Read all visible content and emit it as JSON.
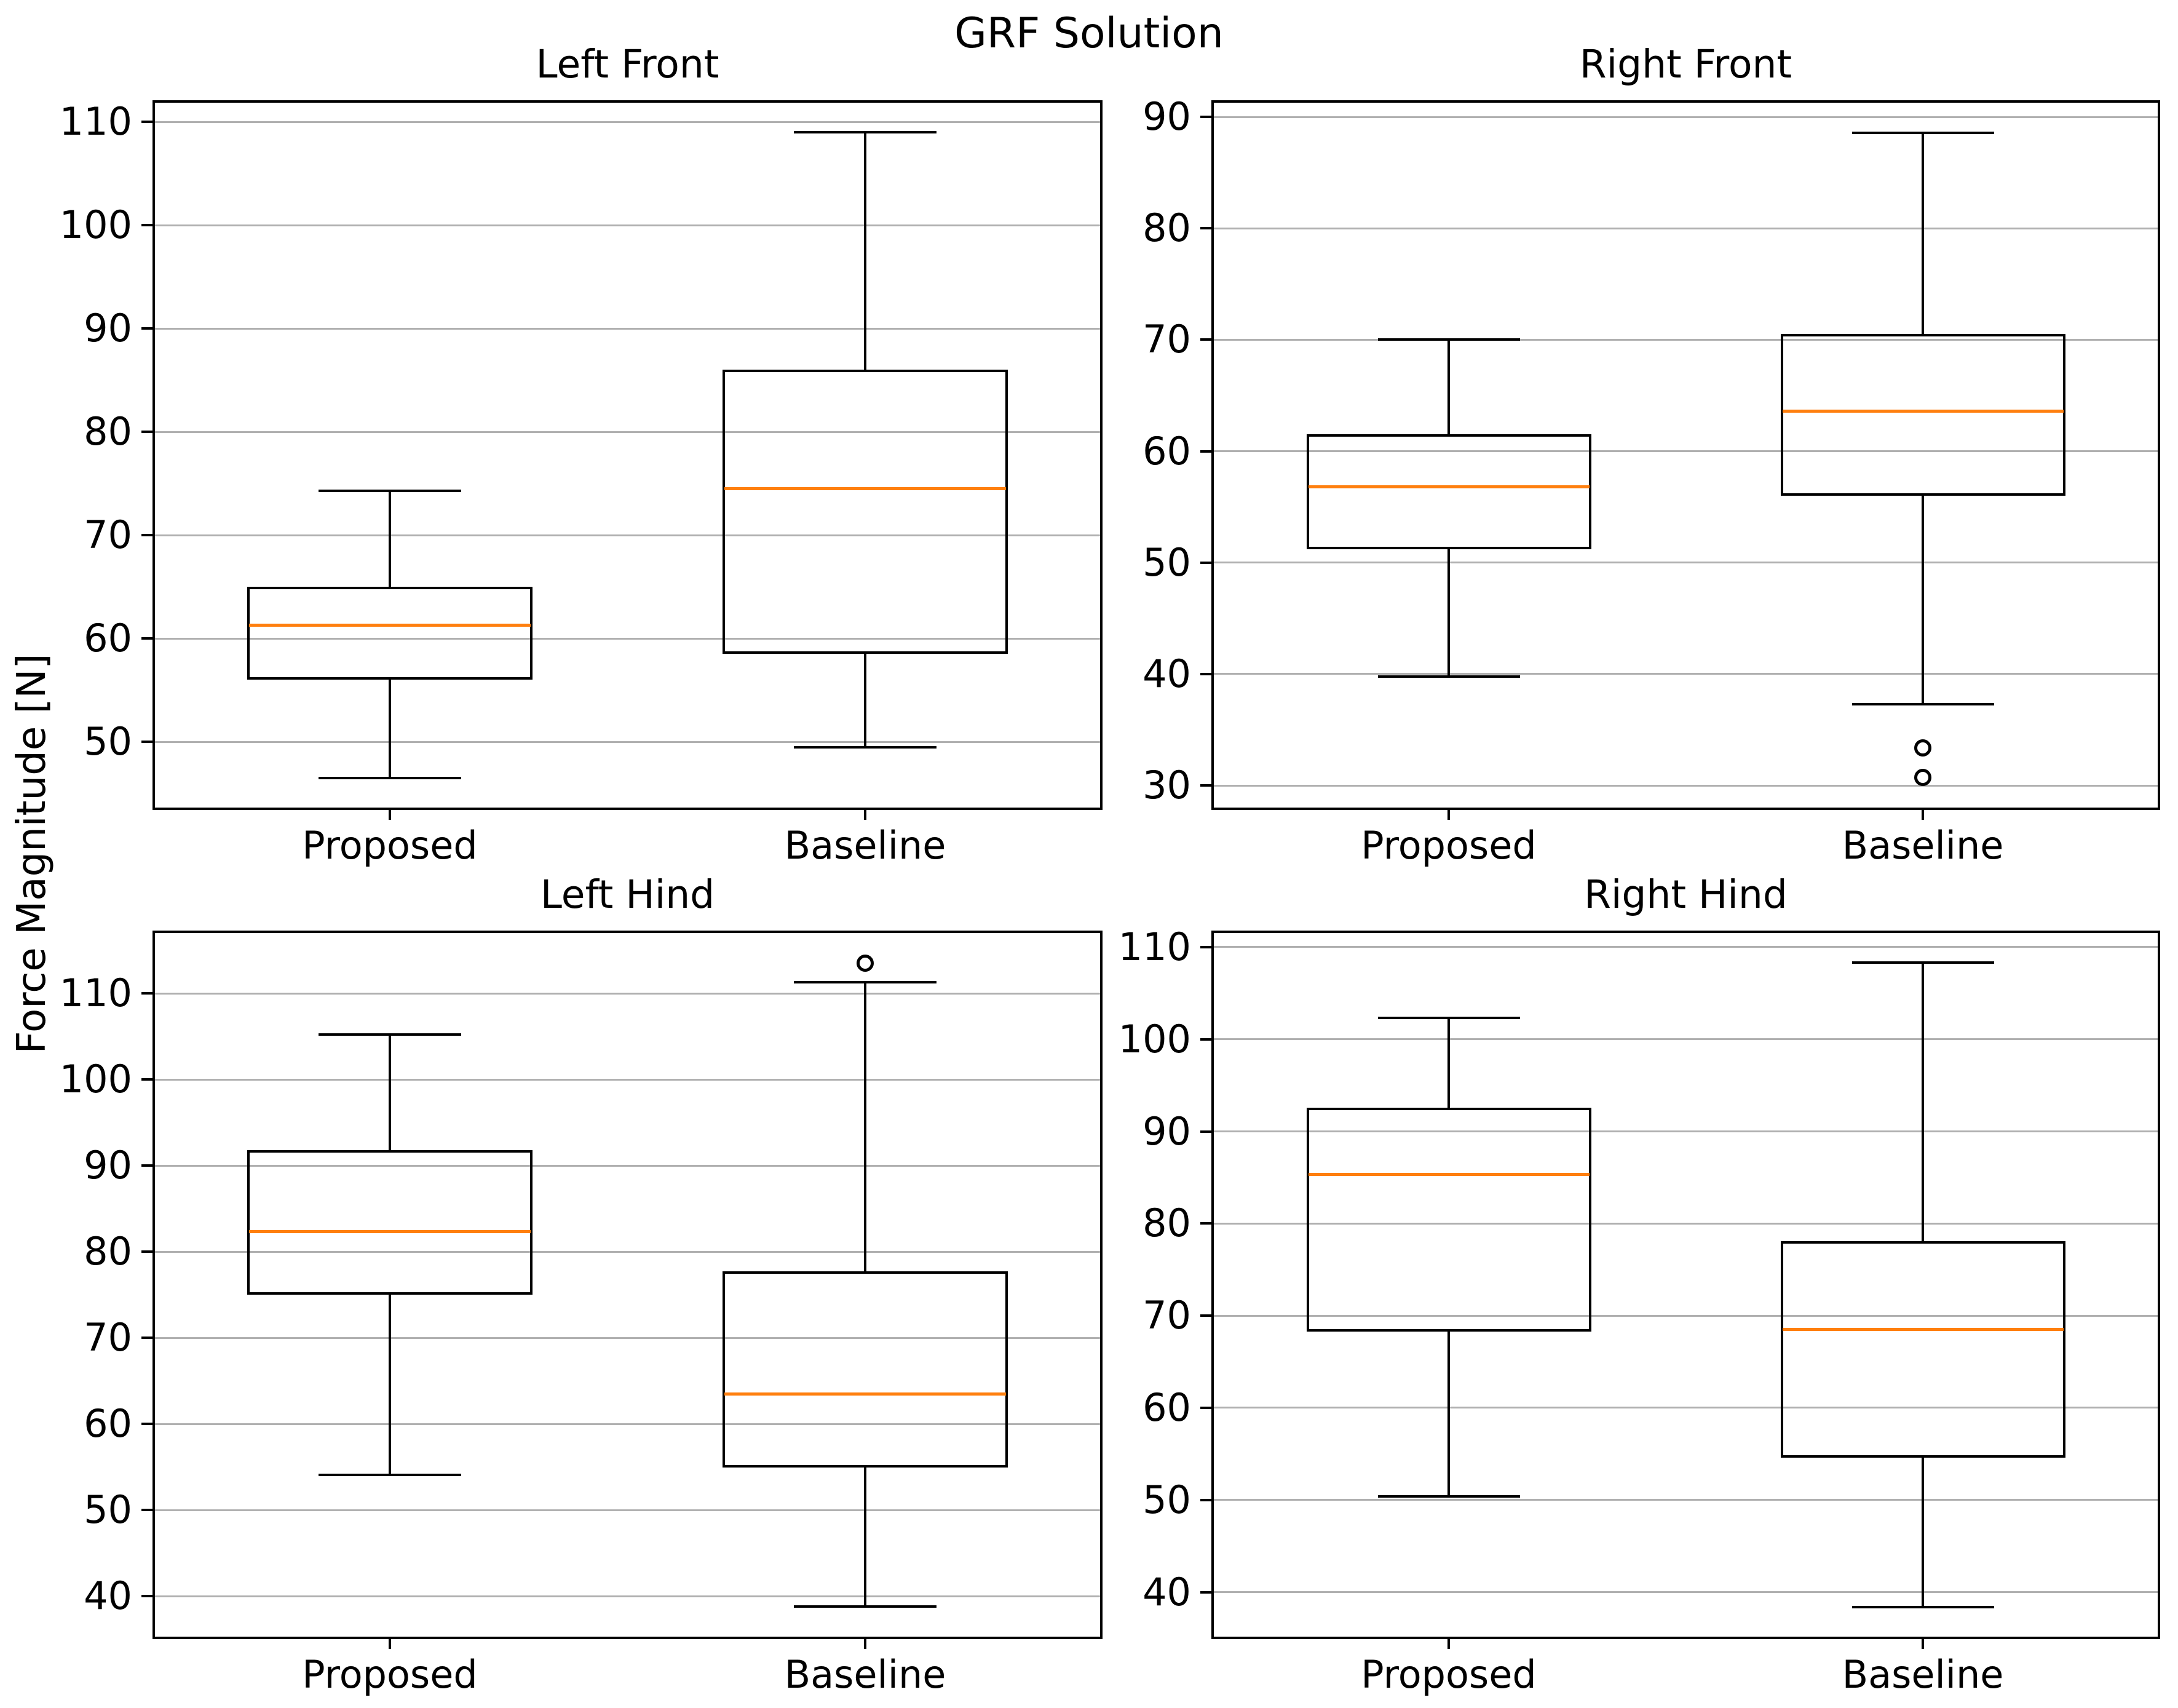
{
  "figure": {
    "suptitle": "GRF Solution",
    "ylabel": "Force Magnitude [N]"
  },
  "chart_data": {
    "type": "boxplot",
    "title": "GRF Solution",
    "ylabel": "Force Magnitude [N]",
    "categories": [
      "Proposed",
      "Baseline"
    ],
    "grid": true,
    "colors": {
      "median": "#ff7f0e",
      "box_edge": "#000000",
      "grid": "#b0b0b0",
      "background": "#ffffff"
    },
    "subplots": [
      {
        "title": "Left Front",
        "row": 0,
        "col": 0,
        "ylim": [
          43.4,
          112.1
        ],
        "yticks": [
          50,
          60,
          70,
          80,
          90,
          100,
          110
        ],
        "boxes": [
          {
            "category": "Proposed",
            "whislo": 46.5,
            "q1": 56.0,
            "med": 61.3,
            "q3": 65.0,
            "whishi": 74.3,
            "fliers": []
          },
          {
            "category": "Baseline",
            "whislo": 49.5,
            "q1": 58.5,
            "med": 74.5,
            "q3": 86.0,
            "whishi": 109.0,
            "fliers": []
          }
        ]
      },
      {
        "title": "Right Front",
        "row": 0,
        "col": 1,
        "ylim": [
          27.8,
          91.5
        ],
        "yticks": [
          30,
          40,
          50,
          60,
          70,
          80,
          90
        ],
        "boxes": [
          {
            "category": "Proposed",
            "whislo": 39.8,
            "q1": 51.2,
            "med": 56.8,
            "q3": 61.5,
            "whishi": 70.0,
            "fliers": []
          },
          {
            "category": "Baseline",
            "whislo": 37.3,
            "q1": 56.0,
            "med": 63.6,
            "q3": 70.5,
            "whishi": 88.6,
            "fliers": [
              33.4,
              30.7
            ]
          }
        ]
      },
      {
        "title": "Left Hind",
        "row": 1,
        "col": 0,
        "ylim": [
          35.0,
          117.3
        ],
        "yticks": [
          40,
          50,
          60,
          70,
          80,
          90,
          100,
          110
        ],
        "boxes": [
          {
            "category": "Proposed",
            "whislo": 54.1,
            "q1": 75.0,
            "med": 82.3,
            "q3": 91.8,
            "whishi": 105.2,
            "fliers": []
          },
          {
            "category": "Baseline",
            "whislo": 38.8,
            "q1": 54.9,
            "med": 63.5,
            "q3": 77.7,
            "whishi": 111.3,
            "fliers": [
              113.5
            ]
          }
        ]
      },
      {
        "title": "Right Hind",
        "row": 1,
        "col": 1,
        "ylim": [
          34.9,
          111.8
        ],
        "yticks": [
          40,
          50,
          60,
          70,
          80,
          90,
          100,
          110
        ],
        "boxes": [
          {
            "category": "Proposed",
            "whislo": 50.4,
            "q1": 68.3,
            "med": 85.3,
            "q3": 92.6,
            "whishi": 102.3,
            "fliers": []
          },
          {
            "category": "Baseline",
            "whislo": 38.4,
            "q1": 54.6,
            "med": 68.5,
            "q3": 78.1,
            "whishi": 108.3,
            "fliers": []
          }
        ]
      }
    ]
  }
}
